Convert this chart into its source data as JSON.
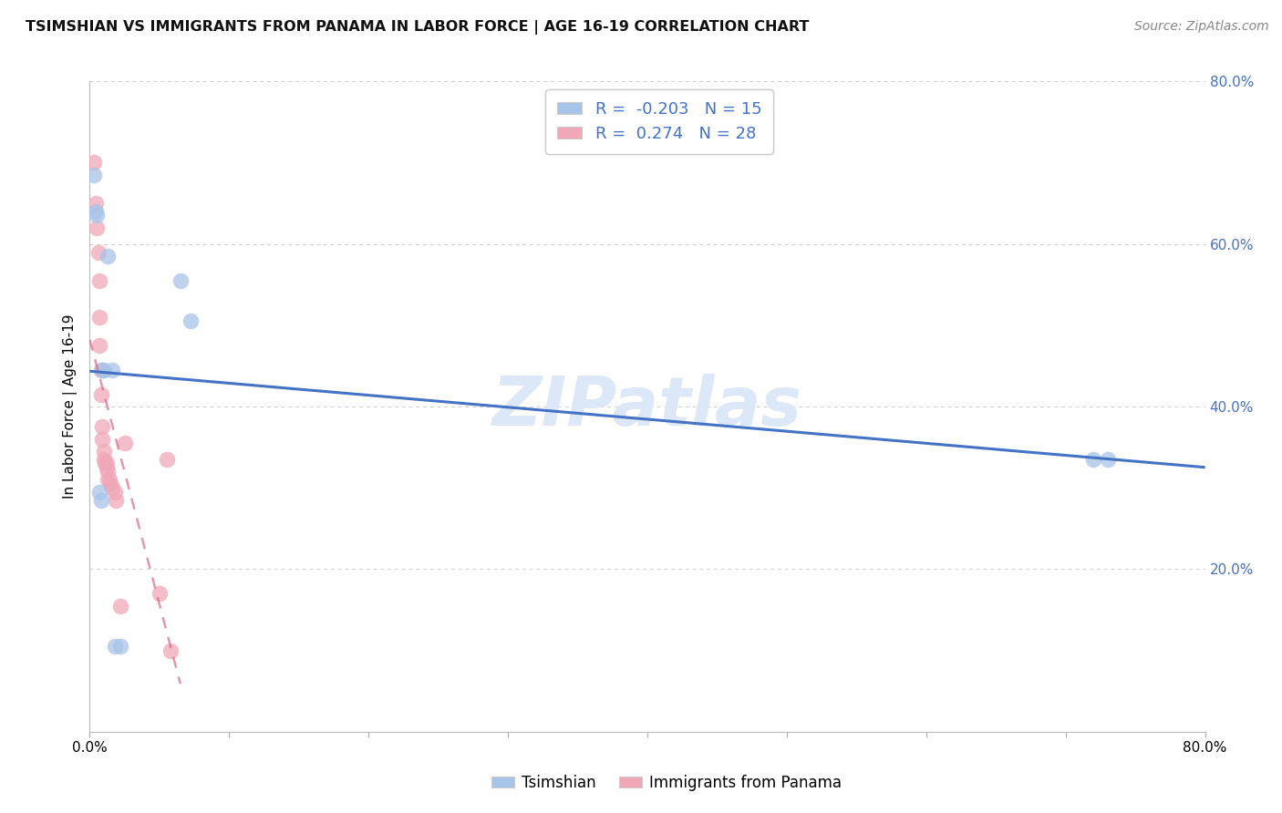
{
  "title": "TSIMSHIAN VS IMMIGRANTS FROM PANAMA IN LABOR FORCE | AGE 16-19 CORRELATION CHART",
  "source": "Source: ZipAtlas.com",
  "ylabel": "In Labor Force | Age 16-19",
  "watermark": "ZIPatlas",
  "legend_tsimshian": "Tsimshian",
  "legend_panama": "Immigrants from Panama",
  "r_tsimshian": -0.203,
  "n_tsimshian": 15,
  "r_panama": 0.274,
  "n_panama": 28,
  "xlim": [
    0.0,
    0.8
  ],
  "ylim": [
    0.0,
    0.8
  ],
  "tsimshian_x": [
    0.003,
    0.004,
    0.005,
    0.007,
    0.008,
    0.009,
    0.01,
    0.013,
    0.016,
    0.018,
    0.022,
    0.065,
    0.072,
    0.72,
    0.73
  ],
  "tsimshian_y": [
    0.685,
    0.64,
    0.635,
    0.295,
    0.285,
    0.445,
    0.445,
    0.585,
    0.445,
    0.105,
    0.105,
    0.555,
    0.505,
    0.335,
    0.335
  ],
  "panama_x": [
    0.003,
    0.004,
    0.005,
    0.006,
    0.007,
    0.007,
    0.007,
    0.008,
    0.008,
    0.009,
    0.009,
    0.01,
    0.01,
    0.011,
    0.012,
    0.012,
    0.013,
    0.013,
    0.014,
    0.015,
    0.016,
    0.018,
    0.019,
    0.022,
    0.025,
    0.05,
    0.055,
    0.058
  ],
  "panama_y": [
    0.7,
    0.65,
    0.62,
    0.59,
    0.555,
    0.51,
    0.475,
    0.445,
    0.415,
    0.375,
    0.36,
    0.345,
    0.335,
    0.33,
    0.33,
    0.325,
    0.32,
    0.31,
    0.31,
    0.305,
    0.3,
    0.295,
    0.285,
    0.155,
    0.355,
    0.17,
    0.335,
    0.1
  ],
  "tsimshian_color": "#a8c4e8",
  "panama_color": "#f0a8b8",
  "tsimshian_line_color": "#4472c4",
  "panama_line_color": "#d46080",
  "background_color": "#ffffff",
  "grid_color": "#cccccc",
  "axis_color": "#4472c4",
  "watermark_color": "#dce8f8",
  "title_fontsize": 11.5,
  "source_fontsize": 10,
  "ylabel_fontsize": 11,
  "tick_fontsize": 11,
  "legend_fontsize": 13
}
